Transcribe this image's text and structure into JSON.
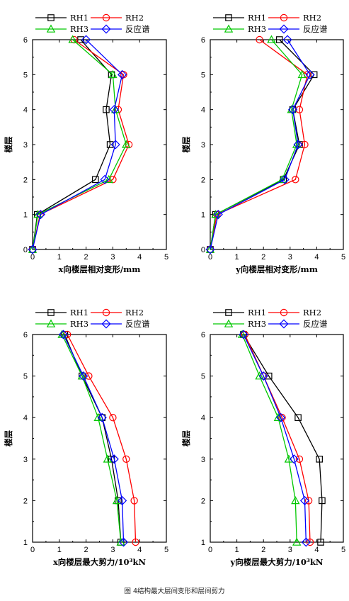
{
  "caption": "图 4结构最大层间变形和层间剪力",
  "colors": {
    "RH1": "#000000",
    "RH2": "#ff0000",
    "RH3": "#00c800",
    "反应谱": "#0000ff"
  },
  "markers": {
    "RH1": "square",
    "RH2": "circle",
    "RH3": "triangle",
    "反应谱": "diamond"
  },
  "chart_data": [
    {
      "type": "line",
      "xlabel": "x向楼层相对变形/mm",
      "ylabel": "楼层",
      "xlim": [
        0,
        5
      ],
      "ylim": [
        0,
        6
      ],
      "xticks": [
        "0",
        "1",
        "2",
        "3",
        "4",
        "5"
      ],
      "yticks": [
        "0",
        "1",
        "2",
        "3",
        "4",
        "5",
        "6"
      ],
      "legend": "top",
      "y": [
        0,
        1,
        2,
        3,
        4,
        5,
        6
      ],
      "series": [
        {
          "name": "RH1",
          "x": [
            0,
            0.18,
            2.35,
            2.9,
            2.75,
            2.95,
            1.8
          ]
        },
        {
          "name": "RH2",
          "x": [
            0,
            0.28,
            3.0,
            3.6,
            3.2,
            3.4,
            1.55
          ]
        },
        {
          "name": "RH3",
          "x": [
            0,
            0.2,
            2.85,
            3.5,
            3.1,
            3.0,
            1.5
          ]
        },
        {
          "name": "反应谱",
          "x": [
            0,
            0.3,
            2.7,
            3.1,
            3.05,
            3.35,
            2.0
          ]
        }
      ]
    },
    {
      "type": "line",
      "xlabel": "y向楼层相对变形/mm",
      "ylabel": "楼层",
      "xlim": [
        0,
        5
      ],
      "ylim": [
        0,
        6
      ],
      "xticks": [
        "0",
        "1",
        "2",
        "3",
        "4",
        "5"
      ],
      "yticks": [
        "0",
        "1",
        "2",
        "3",
        "4",
        "5",
        "6"
      ],
      "legend": "top",
      "y": [
        0,
        1,
        2,
        3,
        4,
        5,
        6
      ],
      "series": [
        {
          "name": "RH1",
          "x": [
            0,
            0.2,
            2.75,
            3.35,
            3.1,
            3.9,
            2.6
          ]
        },
        {
          "name": "RH2",
          "x": [
            0,
            0.25,
            3.2,
            3.55,
            3.35,
            3.65,
            1.85
          ]
        },
        {
          "name": "RH3",
          "x": [
            0,
            0.2,
            2.7,
            3.25,
            3.05,
            3.45,
            2.3
          ]
        },
        {
          "name": "反应谱",
          "x": [
            0,
            0.3,
            2.8,
            3.3,
            3.1,
            3.75,
            2.9
          ]
        }
      ]
    },
    {
      "type": "line",
      "xlabel": "x向楼层最大剪力/10³kN",
      "ylabel": "楼层",
      "xlim": [
        0,
        5
      ],
      "ylim": [
        1,
        6
      ],
      "xticks": [
        "0",
        "1",
        "2",
        "3",
        "4",
        "5"
      ],
      "yticks": [
        "1",
        "2",
        "3",
        "4",
        "5",
        "6"
      ],
      "legend": "top",
      "y": [
        1,
        2,
        3,
        4,
        5,
        6
      ],
      "series": [
        {
          "name": "RH1",
          "x": [
            3.3,
            3.2,
            2.95,
            2.6,
            1.85,
            1.2
          ]
        },
        {
          "name": "RH2",
          "x": [
            3.85,
            3.8,
            3.5,
            3.0,
            2.1,
            1.3
          ]
        },
        {
          "name": "RH3",
          "x": [
            3.3,
            3.15,
            2.8,
            2.45,
            1.85,
            1.1
          ]
        },
        {
          "name": "反应谱",
          "x": [
            3.4,
            3.35,
            3.05,
            2.6,
            1.9,
            1.15
          ]
        }
      ]
    },
    {
      "type": "line",
      "xlabel": "y向楼层最大剪力/10³kN",
      "ylabel": "楼层",
      "xlim": [
        0,
        5
      ],
      "ylim": [
        1,
        6
      ],
      "xticks": [
        "0",
        "1",
        "2",
        "3",
        "4",
        "5"
      ],
      "yticks": [
        "1",
        "2",
        "3",
        "4",
        "5",
        "6"
      ],
      "legend": "top",
      "y": [
        1,
        2,
        3,
        4,
        5,
        6
      ],
      "series": [
        {
          "name": "RH1",
          "x": [
            4.15,
            4.2,
            4.1,
            3.3,
            2.2,
            1.25
          ]
        },
        {
          "name": "RH2",
          "x": [
            3.75,
            3.7,
            3.35,
            2.7,
            2.0,
            1.3
          ]
        },
        {
          "name": "RH3",
          "x": [
            3.25,
            3.2,
            2.95,
            2.55,
            1.85,
            1.2
          ]
        },
        {
          "name": "反应谱",
          "x": [
            3.6,
            3.55,
            3.15,
            2.65,
            2.0,
            1.25
          ]
        }
      ]
    }
  ]
}
